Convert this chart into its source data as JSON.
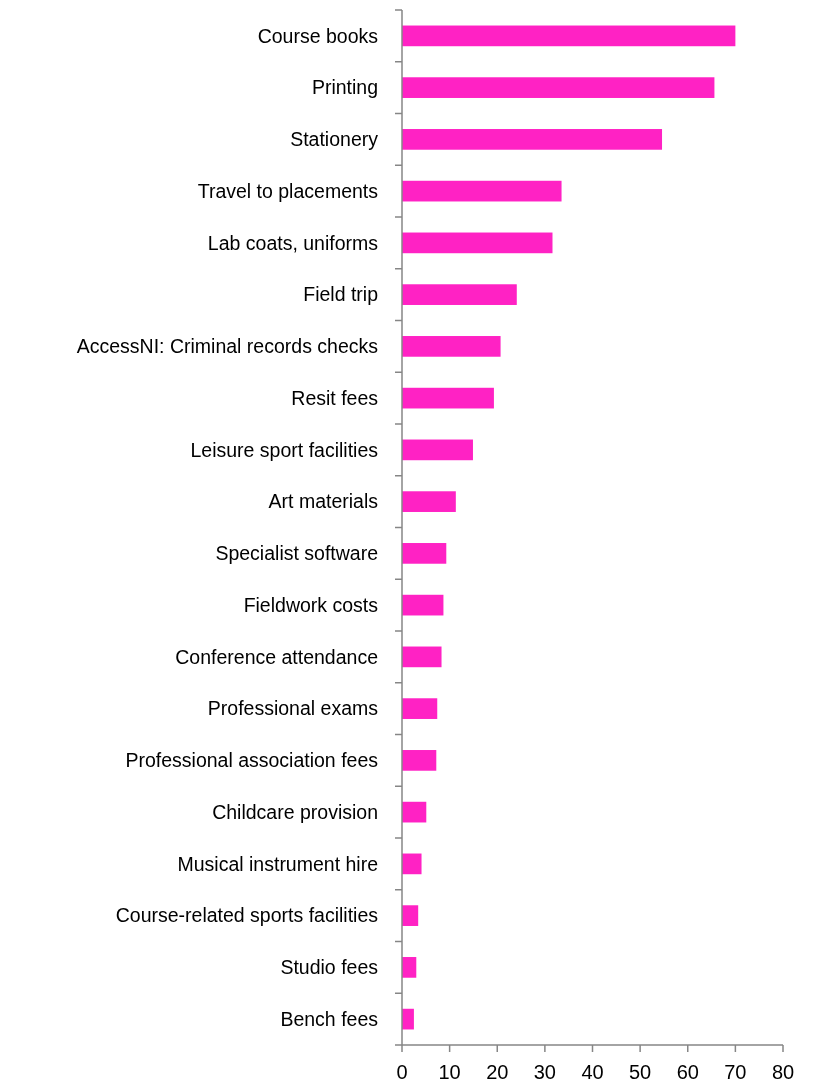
{
  "chart_data": {
    "type": "bar",
    "orientation": "horizontal",
    "categories": [
      "Course books",
      "Printing",
      "Stationery",
      "Travel to placements",
      "Lab coats, uniforms",
      "Field trip",
      "AccessNI: Criminal records checks",
      "Resit fees",
      "Leisure sport facilities",
      "Art materials",
      "Specialist software",
      "Fieldwork costs",
      "Conference attendance",
      "Professional exams",
      "Professional association fees",
      "Childcare provision",
      "Musical instrument hire",
      "Course-related sports facilities",
      "Studio fees",
      "Bench fees"
    ],
    "values": [
      70,
      65.6,
      54.6,
      33.5,
      31.6,
      24.1,
      20.7,
      19.3,
      14.9,
      11.3,
      9.3,
      8.7,
      8.3,
      7.4,
      7.2,
      5.1,
      4.1,
      3.4,
      3.0,
      2.5
    ],
    "color": "#ff22c4",
    "xlim": [
      0,
      80
    ],
    "xticks": [
      0,
      10,
      20,
      30,
      40,
      50,
      60,
      70,
      80
    ],
    "grid": false
  }
}
